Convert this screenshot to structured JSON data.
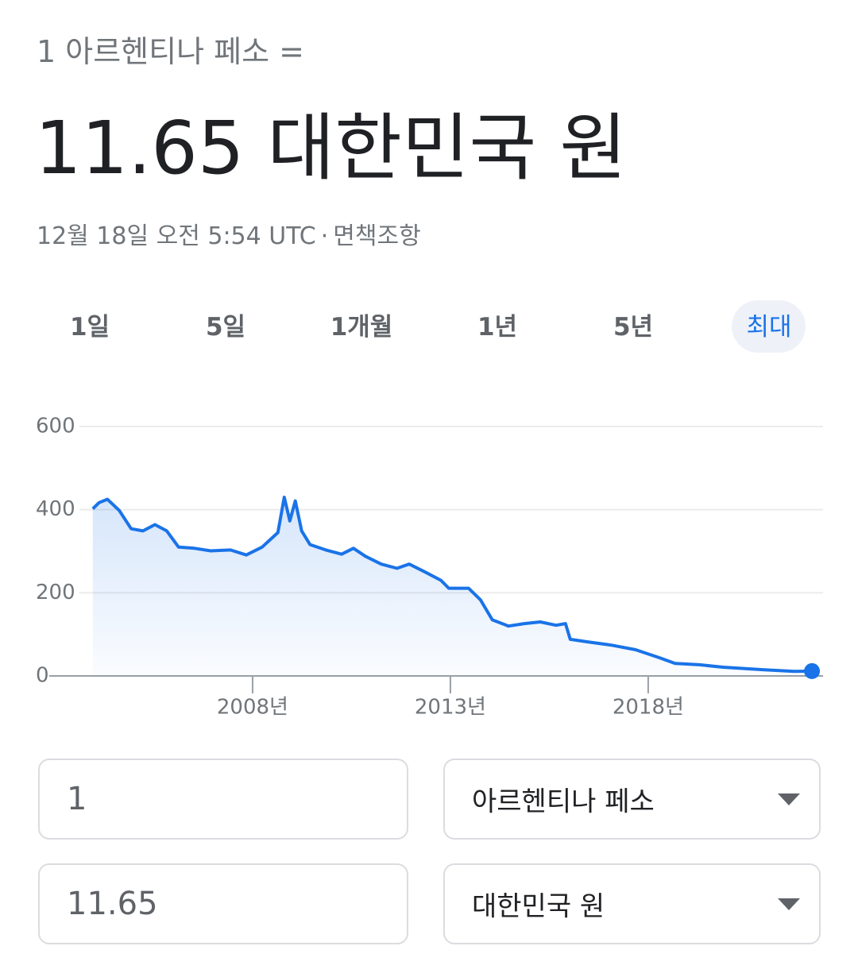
{
  "header": {
    "from_label": "1 아르헨티나 페소 =",
    "result": "11.65 대한민국 원",
    "timestamp": "12월 18일 오전 5:54 UTC",
    "separator": "·",
    "disclaimer": "면책조항"
  },
  "tabs": [
    "1일",
    "5일",
    "1개월",
    "1년",
    "5년",
    "최대"
  ],
  "chart_data": {
    "type": "line",
    "color": "#1a73e8",
    "grid": true,
    "x": [
      2003.96,
      2004.12,
      2004.33,
      2004.63,
      2004.93,
      2005.23,
      2005.53,
      2005.83,
      2006.13,
      2006.53,
      2006.94,
      2007.44,
      2007.84,
      2008.24,
      2008.64,
      2008.8,
      2008.94,
      2009.08,
      2009.24,
      2009.45,
      2009.85,
      2010.25,
      2010.55,
      2010.85,
      2011.25,
      2011.65,
      2011.96,
      2012.36,
      2012.76,
      2012.96,
      2013.46,
      2013.76,
      2014.06,
      2014.47,
      2014.87,
      2015.27,
      2015.67,
      2015.91,
      2016.03,
      2016.47,
      2017.08,
      2017.68,
      2018.28,
      2018.68,
      2019.29,
      2019.89,
      2020.89,
      2021.69,
      2022.14
    ],
    "values": [
      402,
      417,
      425,
      398,
      354,
      349,
      364,
      349,
      310,
      307,
      301,
      303,
      291,
      310,
      345,
      430,
      373,
      421,
      349,
      316,
      303,
      293,
      307,
      288,
      269,
      259,
      269,
      250,
      230,
      211,
      211,
      183,
      135,
      120,
      126,
      130,
      122,
      126,
      88,
      82,
      74,
      63,
      44,
      30,
      27,
      21,
      15,
      11,
      11.65
    ],
    "xlim": [
      2002.86,
      2022.42
    ],
    "xticks": [
      {
        "value": 2008,
        "label": "2008년"
      },
      {
        "value": 2013,
        "label": "2013년"
      },
      {
        "value": 2018,
        "label": "2018년"
      }
    ],
    "ylim": [
      0,
      600
    ],
    "yticks": [
      0,
      200,
      400,
      600
    ]
  },
  "converter": {
    "from_amount": "1",
    "from_currency": "아르헨티나 페소",
    "to_amount": "11.65",
    "to_currency": "대한민국 원"
  }
}
